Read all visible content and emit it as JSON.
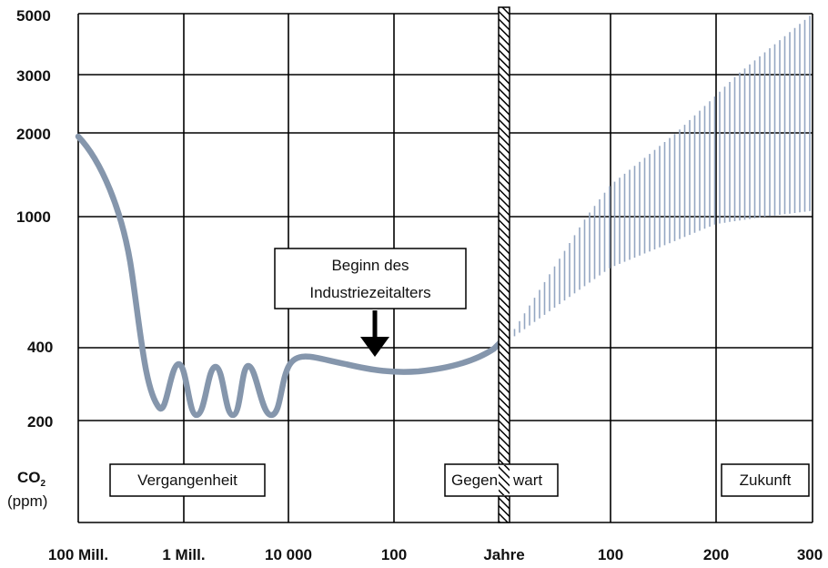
{
  "chart_data": {
    "type": "line",
    "y_axis": {
      "label": "CO2",
      "label_sub": "2",
      "unit": "(ppm)",
      "ticks": [
        "5000",
        "3000",
        "2000",
        "1000",
        "400",
        "200"
      ]
    },
    "x_axis": {
      "ticks": [
        "100 Mill.",
        "1 Mill.",
        "10 000",
        "100",
        "Jahre",
        "100",
        "200",
        "300"
      ]
    },
    "regions": {
      "past": "Vergangenheit",
      "present_part1": "Gegen",
      "present_part2": "wart",
      "future": "Zukunft"
    },
    "annotation": {
      "line1": "Beginn des",
      "line2": "Industriezeitalters"
    },
    "series": [
      {
        "values_past": [
          {
            "x": "100 Mill.",
            "y": 1900
          },
          {
            "x": "1 Mill.",
            "y": 300
          },
          {
            "x": "10 000",
            "y": 300
          },
          {
            "x": "100",
            "y": 315
          },
          {
            "x": "Jahre",
            "y": 415
          }
        ],
        "projection_future": {
          "x": [
            "Jahre",
            "100",
            "200",
            "300"
          ],
          "upper": [
            415,
            1300,
            2600,
            5000
          ],
          "lower": [
            415,
            700,
            950,
            1050
          ]
        }
      }
    ],
    "grid": true,
    "colors": {
      "line": "#8596ac",
      "band": "#94a7c2",
      "grid": "#000000"
    }
  }
}
